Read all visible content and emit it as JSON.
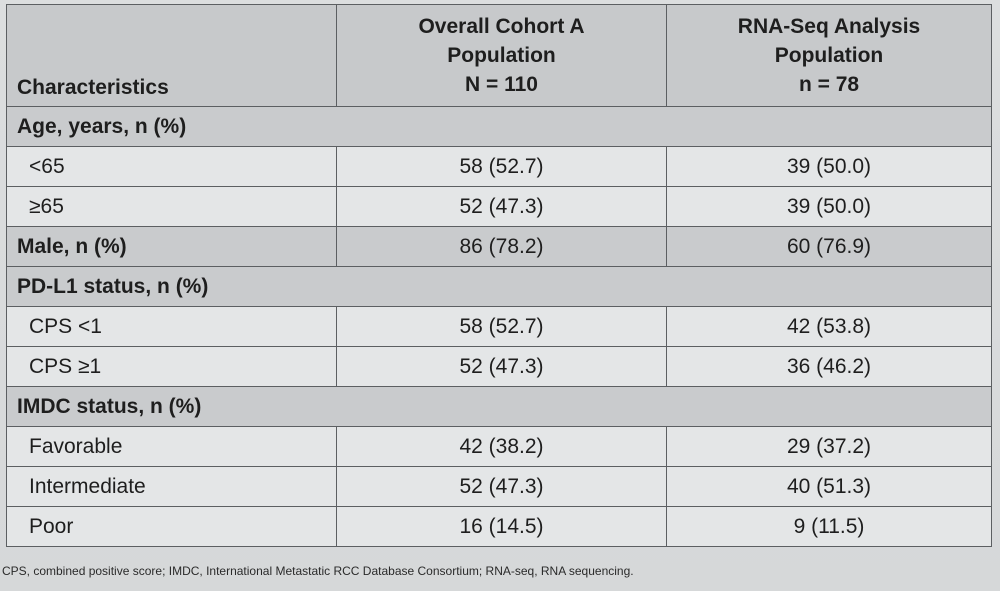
{
  "header": {
    "characteristics": "Characteristics",
    "col1": [
      "Overall Cohort A",
      "Population",
      "N = 110"
    ],
    "col2": [
      "RNA-Seq Analysis",
      "Population",
      "n = 78"
    ]
  },
  "rows": [
    {
      "type": "section",
      "label": "Age, years, n (%)",
      "v1": "",
      "v2": ""
    },
    {
      "type": "data",
      "label": "<65",
      "v1": "58 (52.7)",
      "v2": "39 (50.0)"
    },
    {
      "type": "data",
      "label": "≥65",
      "v1": "52 (47.3)",
      "v2": "39 (50.0)"
    },
    {
      "type": "section-data",
      "label": "Male, n (%)",
      "v1": "86 (78.2)",
      "v2": "60 (76.9)"
    },
    {
      "type": "section",
      "label": "PD-L1 status, n (%)",
      "v1": "",
      "v2": ""
    },
    {
      "type": "data",
      "label": "CPS <1",
      "v1": "58 (52.7)",
      "v2": "42 (53.8)"
    },
    {
      "type": "data",
      "label": "CPS ≥1",
      "v1": "52 (47.3)",
      "v2": "36 (46.2)"
    },
    {
      "type": "section",
      "label": "IMDC status, n (%)",
      "v1": "",
      "v2": ""
    },
    {
      "type": "data",
      "label": "Favorable",
      "v1": "42 (38.2)",
      "v2": "29 (37.2)"
    },
    {
      "type": "data",
      "label": "Intermediate",
      "v1": "52 (47.3)",
      "v2": "40 (51.3)"
    },
    {
      "type": "data",
      "label": "Poor",
      "v1": "16 (14.5)",
      "v2": "9 (11.5)"
    }
  ],
  "footnote": "CPS, combined positive score; IMDC, International Metastatic RCC Database Consortium; RNA-seq, RNA sequencing.",
  "colors": {
    "background": "#d9dbdc",
    "header_fill": "#c7c9cb",
    "section_fill": "#c9cbcd",
    "data_fill": "#e4e6e7",
    "border": "#5c5f62"
  }
}
